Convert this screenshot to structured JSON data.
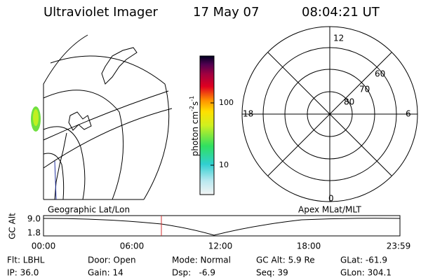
{
  "header": {
    "instrument": "Ultraviolet Imager",
    "date": "17 May 07",
    "time": "08:04:21 UT"
  },
  "colorbar": {
    "unit": "photon cm",
    "exp1": "-2",
    "unit2": "s",
    "exp2": "-1",
    "ticks": [
      "100",
      "10"
    ]
  },
  "polar": {
    "top": "12",
    "bottom": "0",
    "left": "18",
    "right": "6",
    "rings": [
      "60",
      "70",
      "80"
    ]
  },
  "timeline": {
    "left_label": "Geographic Lat/Lon",
    "right_label": "Apex MLat/MLT",
    "axis_label": "GC Alt",
    "y_top": "9.0",
    "y_bottom": "1.8",
    "times": [
      "00:00",
      "06:00",
      "12:00",
      "18:00",
      "23:59"
    ]
  },
  "info": {
    "rows": [
      [
        "Flt: LBHL",
        "Door: Open",
        "Mode: Normal",
        "GC Alt: 5.9 Re",
        "GLat: -61.9"
      ],
      [
        "IP: 36.0",
        "Gain: 14",
        "Dsp:   -6.9",
        "Seq: 39",
        "GLon: 304.1"
      ]
    ]
  }
}
